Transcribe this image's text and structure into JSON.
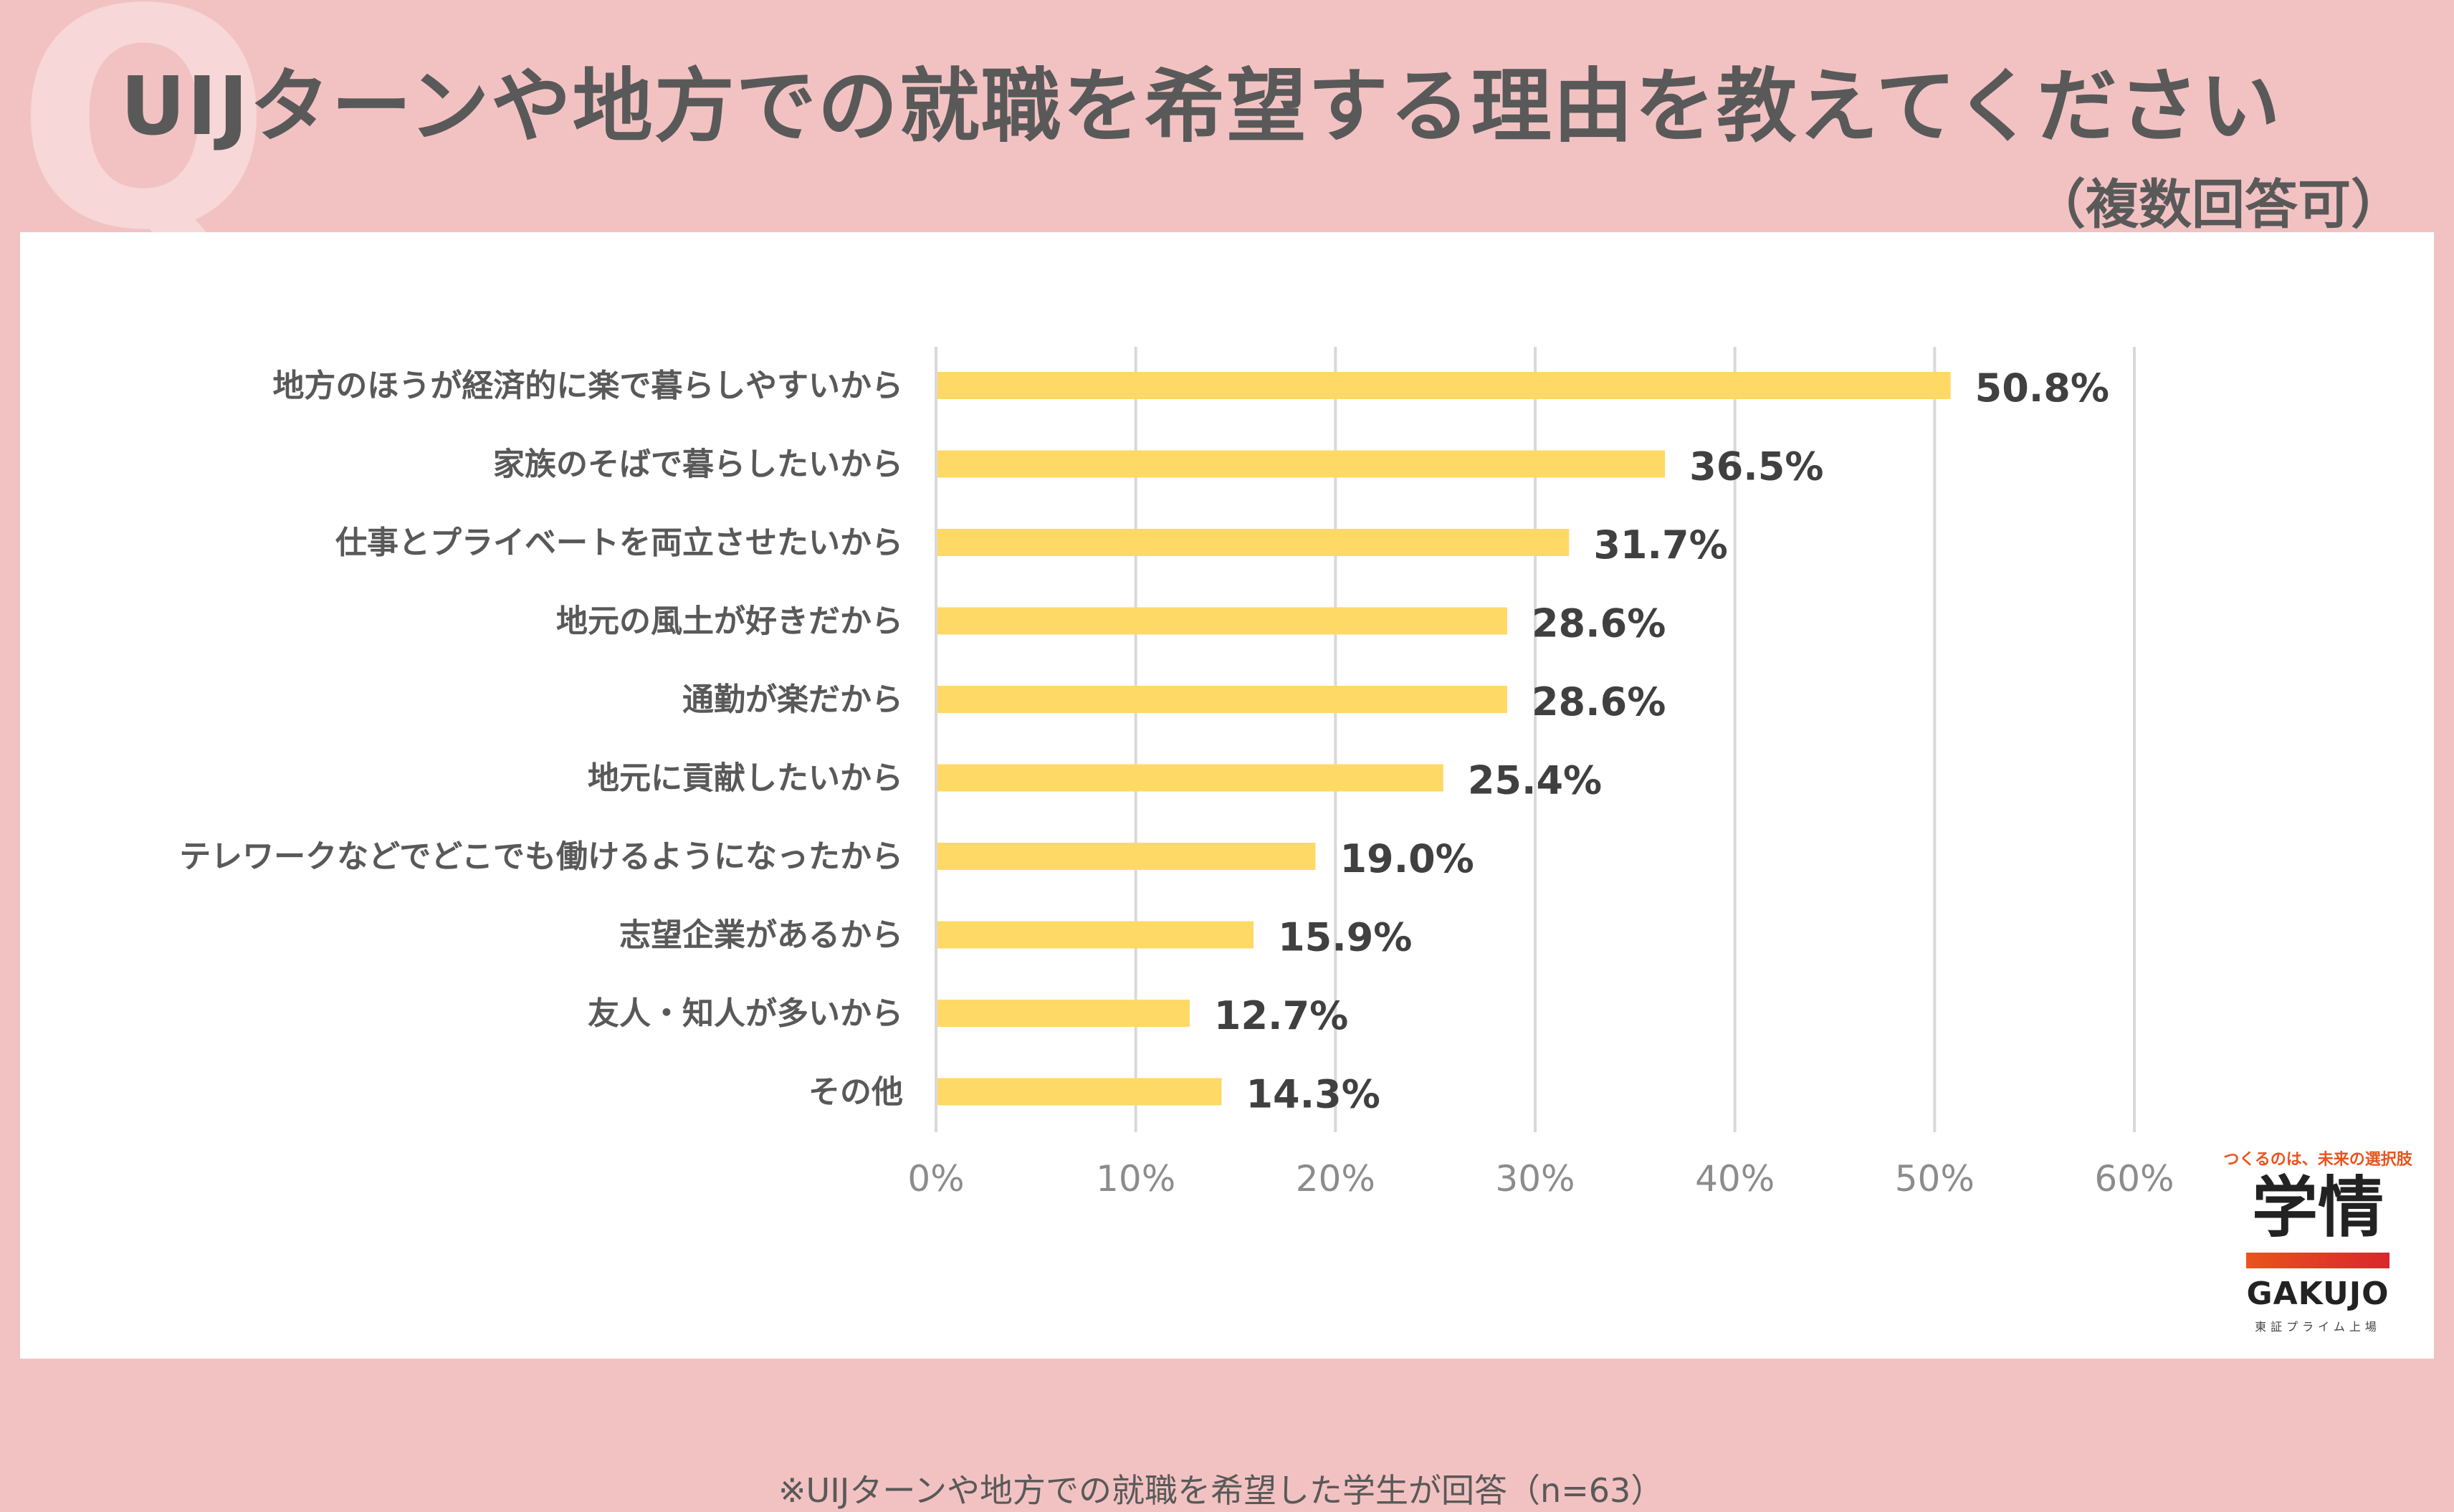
{
  "header": {
    "q_mark": "Q",
    "title": "UIJターンや地方での就職を希望する理由を教えてください",
    "subtitle": "（複数回答可）"
  },
  "note": "※UIJターンや地方での就職を希望した学生が回答（n=63）",
  "logo": {
    "tagline": "つくるのは、未来の選択肢",
    "kanji": "学情",
    "english": "GAKUJO",
    "sub": "東証プライム上場"
  },
  "colors": {
    "background": "#F2C2C2",
    "bar": "#FFD966",
    "grid": "#D9D9D9"
  },
  "chart_data": {
    "type": "bar",
    "orientation": "horizontal",
    "categories": [
      "地方のほうが経済的に楽で暮らしやすいから",
      "家族のそばで暮らしたいから",
      "仕事とプライベートを両立させたいから",
      "地元の風土が好きだから",
      "通勤が楽だから",
      "地元に貢献したいから",
      "テレワークなどでどこでも働けるようになったから",
      "志望企業があるから",
      "友人・知人が多いから",
      "その他"
    ],
    "values": [
      50.8,
      36.5,
      31.7,
      28.6,
      28.6,
      25.4,
      19.0,
      15.9,
      12.7,
      14.3
    ],
    "value_labels": [
      "50.8%",
      "36.5%",
      "31.7%",
      "28.6%",
      "28.6%",
      "25.4%",
      "19.0%",
      "15.9%",
      "12.7%",
      "14.3%"
    ],
    "xlim": [
      0,
      60
    ],
    "x_ticks": [
      0,
      10,
      20,
      30,
      40,
      50,
      60
    ],
    "x_tick_labels": [
      "0%",
      "10%",
      "20%",
      "30%",
      "40%",
      "50%",
      "60%"
    ],
    "grid": true,
    "legend": "none"
  }
}
